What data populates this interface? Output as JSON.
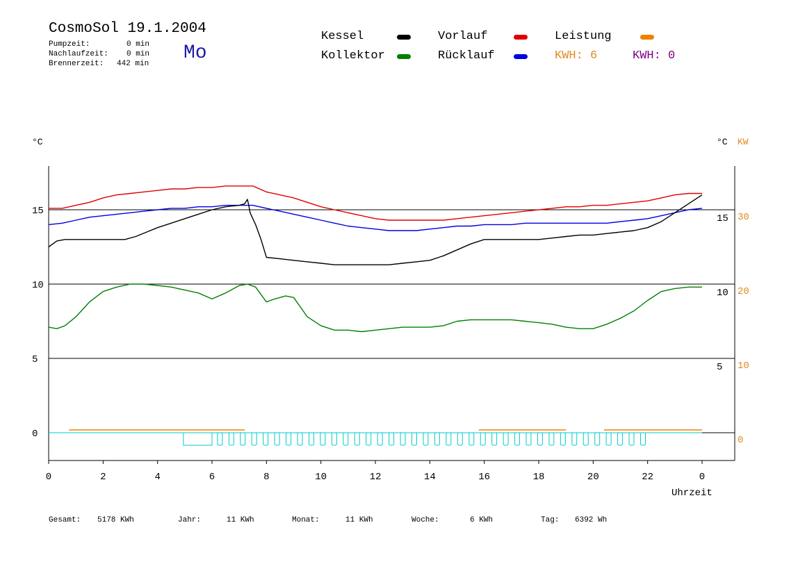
{
  "header": {
    "title": "CosmoSol 19.1.2004",
    "day": "Mo",
    "stats": [
      {
        "label": "Pumpzeit:",
        "value": "0 min"
      },
      {
        "label": "Nachlaufzeit:",
        "value": "0 min"
      },
      {
        "label": "Brennerzeit:",
        "value": "442 min"
      }
    ]
  },
  "legend": {
    "kessel": {
      "label": "Kessel",
      "color": "#000000"
    },
    "kollektor": {
      "label": "Kollektor",
      "color": "#008000"
    },
    "vorlauf": {
      "label": "Vorlauf",
      "color": "#e00000"
    },
    "ruecklauf": {
      "label": "Rücklauf",
      "color": "#0000e0"
    },
    "leistung": {
      "label": "Leistung",
      "color": "#f08000"
    },
    "kwh1": {
      "label": "KWH: 6",
      "color": "#f08000"
    },
    "kwh2": {
      "label": "KWH: 0",
      "color": "#800080"
    }
  },
  "axes": {
    "left_unit": "°C",
    "right_unit_c": "°C",
    "right_unit_kw": "KW",
    "xlabel": "Uhrzeit",
    "x_ticks": [
      "0",
      "2",
      "4",
      "6",
      "8",
      "10",
      "12",
      "14",
      "16",
      "18",
      "20",
      "22",
      "0"
    ],
    "left_ticks": [
      "15",
      "10",
      "5",
      "0"
    ],
    "right_c_ticks": [
      "15",
      "10",
      "5"
    ],
    "right_kw_ticks": [
      "30",
      "20",
      "10",
      "0"
    ]
  },
  "footer": [
    {
      "label": "Gesamt:",
      "value": "5178 KWh"
    },
    {
      "label": "Jahr:",
      "value": "11 KWh"
    },
    {
      "label": "Monat:",
      "value": "11 KWh"
    },
    {
      "label": "Woche:",
      "value": "6 KWh"
    },
    {
      "label": "Tag:",
      "value": "6392 Wh"
    }
  ],
  "chart_data": {
    "type": "line",
    "title": "CosmoSol 19.1.2004",
    "xlabel": "Uhrzeit",
    "ylabel": "°C",
    "xlim": [
      0,
      24
    ],
    "ylim": [
      -1.5,
      18
    ],
    "grid": true,
    "series": [
      {
        "name": "Vorlauf",
        "color": "#e00000",
        "x": [
          0,
          0.5,
          1,
          1.5,
          2,
          2.5,
          3,
          3.5,
          4,
          4.5,
          5,
          5.5,
          6,
          6.5,
          7,
          7.5,
          8,
          8.5,
          9,
          9.5,
          10,
          10.5,
          11,
          11.5,
          12,
          12.5,
          13,
          13.5,
          14,
          14.5,
          15,
          15.5,
          16,
          16.5,
          17,
          17.5,
          18,
          18.5,
          19,
          19.5,
          20,
          20.5,
          21,
          21.5,
          22,
          22.5,
          23,
          23.5,
          24
        ],
        "y": [
          15.1,
          15.1,
          15.3,
          15.5,
          15.8,
          16.0,
          16.1,
          16.2,
          16.3,
          16.4,
          16.4,
          16.5,
          16.5,
          16.6,
          16.6,
          16.6,
          16.2,
          16.0,
          15.8,
          15.5,
          15.2,
          15.0,
          14.8,
          14.6,
          14.4,
          14.3,
          14.3,
          14.3,
          14.3,
          14.3,
          14.4,
          14.5,
          14.6,
          14.7,
          14.8,
          14.9,
          15.0,
          15.1,
          15.2,
          15.2,
          15.3,
          15.3,
          15.4,
          15.5,
          15.6,
          15.8,
          16.0,
          16.1,
          16.1
        ]
      },
      {
        "name": "Rücklauf",
        "color": "#0000e0",
        "x": [
          0,
          0.5,
          1,
          1.5,
          2,
          2.5,
          3,
          3.5,
          4,
          4.5,
          5,
          5.5,
          6,
          6.5,
          7,
          7.5,
          8,
          8.5,
          9,
          9.5,
          10,
          10.5,
          11,
          11.5,
          12,
          12.5,
          13,
          13.5,
          14,
          14.5,
          15,
          15.5,
          16,
          16.5,
          17,
          17.5,
          18,
          18.5,
          19,
          19.5,
          20,
          20.5,
          21,
          21.5,
          22,
          22.5,
          23,
          23.5,
          24
        ],
        "y": [
          14.0,
          14.1,
          14.3,
          14.5,
          14.6,
          14.7,
          14.8,
          14.9,
          15.0,
          15.1,
          15.1,
          15.2,
          15.2,
          15.3,
          15.3,
          15.3,
          15.1,
          14.9,
          14.7,
          14.5,
          14.3,
          14.1,
          13.9,
          13.8,
          13.7,
          13.6,
          13.6,
          13.6,
          13.7,
          13.8,
          13.9,
          13.9,
          14.0,
          14.0,
          14.0,
          14.1,
          14.1,
          14.1,
          14.1,
          14.1,
          14.1,
          14.1,
          14.2,
          14.3,
          14.4,
          14.6,
          14.8,
          15.0,
          15.1
        ]
      },
      {
        "name": "Kessel",
        "color": "#000000",
        "x": [
          0,
          0.3,
          0.6,
          1,
          1.5,
          2,
          2.4,
          2.8,
          3.2,
          3.6,
          4,
          4.5,
          5,
          5.5,
          6,
          6.5,
          7,
          7.2,
          7.3,
          7.35,
          7.4,
          7.6,
          7.8,
          8,
          8.5,
          9,
          9.5,
          10,
          10.5,
          11,
          11.5,
          12,
          12.5,
          13,
          13.5,
          14,
          14.5,
          15,
          15.5,
          16,
          16.5,
          17,
          17.5,
          18,
          18.5,
          19,
          19.5,
          20,
          20.5,
          21,
          21.5,
          22,
          22.5,
          23,
          23.5,
          24
        ],
        "y": [
          12.5,
          12.9,
          13.0,
          13.0,
          13.0,
          13.0,
          13.0,
          13.0,
          13.2,
          13.5,
          13.8,
          14.1,
          14.4,
          14.7,
          15.0,
          15.2,
          15.3,
          15.4,
          15.7,
          15.3,
          14.8,
          14.0,
          13.0,
          11.8,
          11.7,
          11.6,
          11.5,
          11.4,
          11.3,
          11.3,
          11.3,
          11.3,
          11.3,
          11.4,
          11.5,
          11.6,
          11.9,
          12.3,
          12.7,
          13.0,
          13.0,
          13.0,
          13.0,
          13.0,
          13.1,
          13.2,
          13.3,
          13.3,
          13.4,
          13.5,
          13.6,
          13.8,
          14.2,
          14.8,
          15.4,
          16.0
        ]
      },
      {
        "name": "Kollektor",
        "color": "#008000",
        "x": [
          0,
          0.3,
          0.6,
          1,
          1.5,
          2,
          2.5,
          3,
          3.5,
          4,
          4.5,
          5,
          5.5,
          6,
          6.5,
          7,
          7.3,
          7.6,
          8,
          8.3,
          8.7,
          9,
          9.5,
          10,
          10.5,
          11,
          11.5,
          12,
          12.5,
          13,
          13.5,
          14,
          14.5,
          15,
          15.5,
          16,
          16.5,
          17,
          17.5,
          18,
          18.5,
          19,
          19.5,
          20,
          20.5,
          21,
          21.5,
          22,
          22.5,
          23,
          23.5,
          24
        ],
        "y": [
          7.1,
          7.0,
          7.2,
          7.8,
          8.8,
          9.5,
          9.8,
          10.0,
          10.0,
          9.9,
          9.8,
          9.6,
          9.4,
          9.0,
          9.4,
          9.9,
          10.0,
          9.8,
          8.8,
          9.0,
          9.2,
          9.1,
          7.8,
          7.2,
          6.9,
          6.9,
          6.8,
          6.9,
          7.0,
          7.1,
          7.1,
          7.1,
          7.2,
          7.5,
          7.6,
          7.6,
          7.6,
          7.6,
          7.5,
          7.4,
          7.3,
          7.1,
          7.0,
          7.0,
          7.3,
          7.7,
          8.2,
          8.9,
          9.5,
          9.7,
          9.8,
          9.8
        ]
      }
    ]
  }
}
